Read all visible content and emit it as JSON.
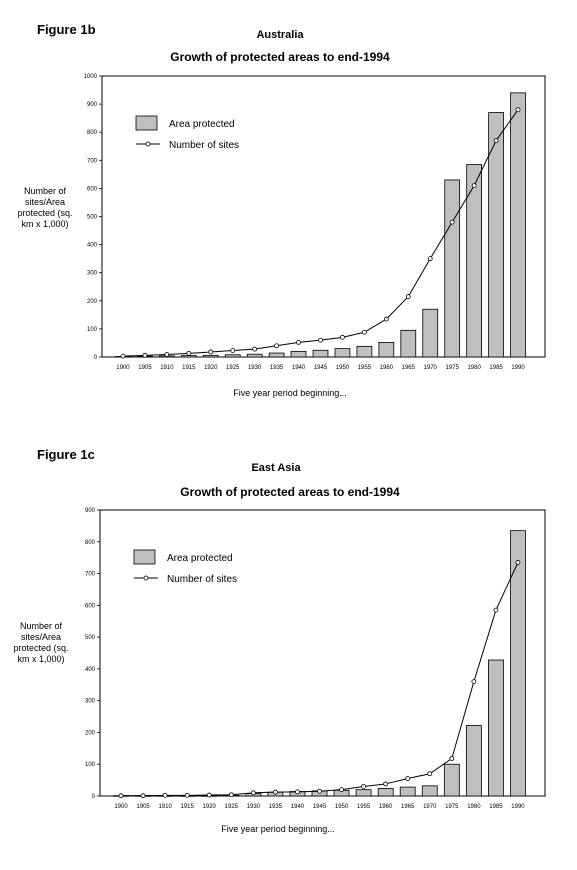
{
  "chart_data": [
    {
      "figure_label": "Figure 1b",
      "region": "Australia",
      "type": "bar",
      "title": "Growth of protected areas to end-1994",
      "xlabel": "Five year period beginning...",
      "ylabel": "Number of sites/Area protected (sq. km x 1,000)",
      "ylim": [
        0,
        1000
      ],
      "yticks": [
        0,
        100,
        200,
        300,
        400,
        500,
        600,
        700,
        800,
        900,
        1000
      ],
      "categories": [
        "1900",
        "1905",
        "1910",
        "1915",
        "1920",
        "1925",
        "1930",
        "1935",
        "1940",
        "1945",
        "1950",
        "1955",
        "1960",
        "1965",
        "1970",
        "1975",
        "1980",
        "1985",
        "1990"
      ],
      "series": [
        {
          "name": "Area protected",
          "kind": "bar",
          "values": [
            2,
            3,
            4,
            5,
            6,
            8,
            10,
            14,
            20,
            24,
            30,
            38,
            52,
            95,
            170,
            630,
            685,
            870,
            940
          ]
        },
        {
          "name": "Number of sites",
          "kind": "line",
          "values": [
            3,
            6,
            9,
            13,
            18,
            23,
            28,
            40,
            52,
            60,
            70,
            88,
            135,
            215,
            350,
            480,
            610,
            770,
            880
          ]
        }
      ],
      "legend_position": "top-left"
    },
    {
      "figure_label": "Figure 1c",
      "region": "East Asia",
      "type": "bar",
      "title": "Growth of protected areas to end-1994",
      "xlabel": "Five year period beginning...",
      "ylabel": "Number of sites/Area protected (sq. km x 1,000)",
      "ylim": [
        0,
        900
      ],
      "yticks": [
        0,
        100,
        200,
        300,
        400,
        500,
        600,
        700,
        800,
        900
      ],
      "categories": [
        "1900",
        "1905",
        "1910",
        "1915",
        "1920",
        "1925",
        "1930",
        "1935",
        "1940",
        "1945",
        "1950",
        "1955",
        "1960",
        "1965",
        "1970",
        "1975",
        "1980",
        "1985",
        "1990"
      ],
      "series": [
        {
          "name": "Area protected",
          "kind": "bar",
          "values": [
            1,
            1,
            1,
            1,
            1,
            2,
            8,
            12,
            14,
            16,
            18,
            20,
            24,
            28,
            32,
            100,
            222,
            428,
            835
          ]
        },
        {
          "name": "Number of sites",
          "kind": "line",
          "values": [
            1,
            1,
            2,
            2,
            3,
            4,
            10,
            12,
            13,
            15,
            20,
            30,
            38,
            55,
            70,
            118,
            360,
            585,
            735
          ]
        }
      ],
      "legend_position": "top-left"
    }
  ]
}
